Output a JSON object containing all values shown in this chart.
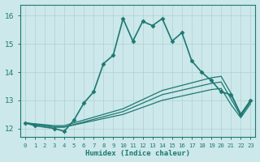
{
  "xlabel": "Humidex (Indice chaleur)",
  "xlim": [
    -0.5,
    23.5
  ],
  "ylim": [
    11.7,
    16.4
  ],
  "yticks": [
    12,
    13,
    14,
    15,
    16
  ],
  "xticks": [
    0,
    1,
    2,
    3,
    4,
    5,
    6,
    7,
    8,
    9,
    10,
    11,
    12,
    13,
    14,
    15,
    16,
    17,
    18,
    19,
    20,
    21,
    22,
    23
  ],
  "bg_color": "#cce8ea",
  "line_color": "#1e7872",
  "grid_color": "#b0d0d3",
  "lines": [
    {
      "x": [
        0,
        1,
        3,
        4,
        5,
        6,
        7,
        8,
        9,
        10,
        11,
        12,
        13,
        14,
        15,
        16,
        17,
        18,
        19,
        20,
        21,
        22,
        23
      ],
      "y": [
        12.2,
        12.1,
        12.0,
        11.9,
        12.3,
        12.9,
        13.3,
        14.3,
        14.6,
        15.9,
        15.1,
        15.8,
        15.65,
        15.9,
        15.1,
        15.4,
        14.4,
        14.0,
        13.7,
        13.3,
        13.2,
        12.5,
        13.0
      ],
      "marker": "D",
      "markersize": 2.5,
      "linewidth": 1.2,
      "linestyle": "-"
    },
    {
      "x": [
        0,
        3,
        4,
        10,
        14,
        19,
        20,
        21,
        22,
        23
      ],
      "y": [
        12.2,
        12.1,
        12.1,
        12.7,
        13.35,
        13.8,
        13.85,
        13.25,
        12.5,
        13.0
      ],
      "marker": null,
      "linewidth": 0.9,
      "linestyle": "-"
    },
    {
      "x": [
        0,
        3,
        4,
        10,
        14,
        19,
        20,
        21,
        22,
        23
      ],
      "y": [
        12.2,
        12.05,
        12.05,
        12.6,
        13.2,
        13.6,
        13.65,
        13.05,
        12.45,
        12.95
      ],
      "marker": null,
      "linewidth": 0.9,
      "linestyle": "-"
    },
    {
      "x": [
        0,
        3,
        4,
        10,
        14,
        19,
        20,
        21,
        22,
        23
      ],
      "y": [
        12.2,
        12.05,
        12.05,
        12.5,
        13.0,
        13.38,
        13.42,
        12.85,
        12.38,
        12.88
      ],
      "marker": null,
      "linewidth": 0.9,
      "linestyle": "-"
    }
  ]
}
